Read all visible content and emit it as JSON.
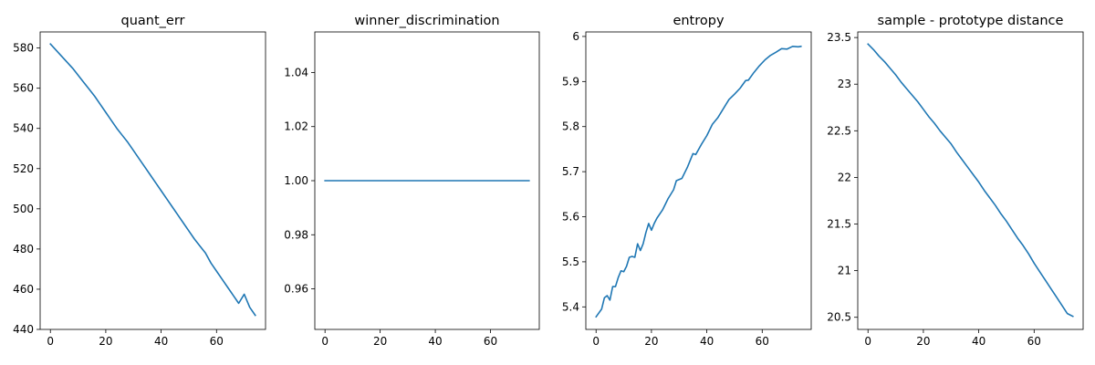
{
  "chart_data": [
    {
      "type": "line",
      "title": "quant_err",
      "xlabel": "",
      "ylabel": "",
      "xlim": [
        -3.7,
        77.7
      ],
      "ylim": [
        440,
        588
      ],
      "x_ticks": [
        0,
        20,
        40,
        60
      ],
      "y_ticks": [
        440,
        460,
        480,
        500,
        520,
        540,
        560,
        580
      ],
      "grid": false,
      "color": "#1f77b4",
      "points": [
        [
          0,
          582
        ],
        [
          2,
          579
        ],
        [
          4,
          576
        ],
        [
          6,
          573
        ],
        [
          8,
          570
        ],
        [
          10,
          566.5
        ],
        [
          12,
          563
        ],
        [
          14,
          559.5
        ],
        [
          16,
          556
        ],
        [
          18,
          552
        ],
        [
          20,
          548
        ],
        [
          22,
          544
        ],
        [
          24,
          540
        ],
        [
          26,
          536.5
        ],
        [
          28,
          533
        ],
        [
          30,
          529
        ],
        [
          32,
          525
        ],
        [
          34,
          521
        ],
        [
          36,
          517
        ],
        [
          38,
          513
        ],
        [
          40,
          509
        ],
        [
          42,
          505
        ],
        [
          44,
          501
        ],
        [
          46,
          497
        ],
        [
          48,
          493
        ],
        [
          50,
          489
        ],
        [
          52,
          485
        ],
        [
          54,
          481.5
        ],
        [
          56,
          478
        ],
        [
          58,
          473
        ],
        [
          60,
          469
        ],
        [
          62,
          465
        ],
        [
          64,
          461
        ],
        [
          66,
          457
        ],
        [
          68,
          453
        ],
        [
          70,
          457.5
        ],
        [
          72,
          451
        ],
        [
          74,
          447
        ]
      ]
    },
    {
      "type": "line",
      "title": "winner_discrimination",
      "xlabel": "",
      "ylabel": "",
      "xlim": [
        -3.7,
        77.7
      ],
      "ylim": [
        0.945,
        1.055
      ],
      "x_ticks": [
        0,
        20,
        40,
        60
      ],
      "y_ticks": [
        0.96,
        0.98,
        1.0,
        1.02,
        1.04
      ],
      "y_tick_labels": [
        "0.96",
        "0.98",
        "1.00",
        "1.02",
        "1.04"
      ],
      "grid": false,
      "color": "#1f77b4",
      "points": [
        [
          0,
          1.0
        ],
        [
          74,
          1.0
        ]
      ]
    },
    {
      "type": "line",
      "title": "entropy",
      "xlabel": "",
      "ylabel": "",
      "xlim": [
        -3.7,
        77.7
      ],
      "ylim": [
        5.35,
        6.01
      ],
      "x_ticks": [
        0,
        20,
        40,
        60
      ],
      "y_ticks": [
        5.4,
        5.5,
        5.6,
        5.7,
        5.8,
        5.9,
        6.0
      ],
      "grid": false,
      "color": "#1f77b4",
      "points": [
        [
          0,
          5.378
        ],
        [
          2,
          5.395
        ],
        [
          3,
          5.42
        ],
        [
          4,
          5.425
        ],
        [
          5,
          5.415
        ],
        [
          6,
          5.445
        ],
        [
          7,
          5.445
        ],
        [
          8,
          5.465
        ],
        [
          9,
          5.48
        ],
        [
          10,
          5.478
        ],
        [
          11,
          5.49
        ],
        [
          12,
          5.51
        ],
        [
          13,
          5.512
        ],
        [
          14,
          5.51
        ],
        [
          15,
          5.54
        ],
        [
          16,
          5.525
        ],
        [
          17,
          5.54
        ],
        [
          18,
          5.565
        ],
        [
          19,
          5.585
        ],
        [
          20,
          5.57
        ],
        [
          21,
          5.585
        ],
        [
          22,
          5.597
        ],
        [
          24,
          5.615
        ],
        [
          26,
          5.64
        ],
        [
          28,
          5.66
        ],
        [
          29,
          5.68
        ],
        [
          31,
          5.685
        ],
        [
          33,
          5.71
        ],
        [
          35,
          5.74
        ],
        [
          36,
          5.738
        ],
        [
          38,
          5.76
        ],
        [
          40,
          5.78
        ],
        [
          42,
          5.805
        ],
        [
          44,
          5.82
        ],
        [
          46,
          5.84
        ],
        [
          48,
          5.86
        ],
        [
          50,
          5.872
        ],
        [
          52,
          5.885
        ],
        [
          54,
          5.902
        ],
        [
          55,
          5.903
        ],
        [
          57,
          5.92
        ],
        [
          59,
          5.935
        ],
        [
          61,
          5.948
        ],
        [
          63,
          5.958
        ],
        [
          65,
          5.965
        ],
        [
          67,
          5.973
        ],
        [
          69,
          5.972
        ],
        [
          71,
          5.978
        ],
        [
          73,
          5.977
        ],
        [
          74,
          5.978
        ]
      ]
    },
    {
      "type": "line",
      "title": "sample - prototype distance",
      "xlabel": "",
      "ylabel": "",
      "xlim": [
        -3.7,
        77.7
      ],
      "ylim": [
        20.37,
        23.56
      ],
      "x_ticks": [
        0,
        20,
        40,
        60
      ],
      "y_ticks": [
        20.5,
        21.0,
        21.5,
        22.0,
        22.5,
        23.0,
        23.5
      ],
      "grid": false,
      "color": "#1f77b4",
      "points": [
        [
          0,
          23.43
        ],
        [
          2,
          23.37
        ],
        [
          4,
          23.3
        ],
        [
          6,
          23.24
        ],
        [
          8,
          23.17
        ],
        [
          10,
          23.1
        ],
        [
          12,
          23.02
        ],
        [
          14,
          22.95
        ],
        [
          16,
          22.88
        ],
        [
          18,
          22.81
        ],
        [
          20,
          22.73
        ],
        [
          22,
          22.65
        ],
        [
          24,
          22.58
        ],
        [
          26,
          22.5
        ],
        [
          28,
          22.43
        ],
        [
          30,
          22.36
        ],
        [
          32,
          22.27
        ],
        [
          34,
          22.19
        ],
        [
          36,
          22.11
        ],
        [
          38,
          22.03
        ],
        [
          40,
          21.95
        ],
        [
          42,
          21.86
        ],
        [
          44,
          21.78
        ],
        [
          46,
          21.7
        ],
        [
          48,
          21.61
        ],
        [
          50,
          21.53
        ],
        [
          52,
          21.44
        ],
        [
          54,
          21.35
        ],
        [
          56,
          21.27
        ],
        [
          58,
          21.18
        ],
        [
          60,
          21.08
        ],
        [
          62,
          20.99
        ],
        [
          64,
          20.9
        ],
        [
          66,
          20.81
        ],
        [
          68,
          20.72
        ],
        [
          70,
          20.63
        ],
        [
          72,
          20.54
        ],
        [
          74,
          20.51
        ]
      ]
    }
  ]
}
